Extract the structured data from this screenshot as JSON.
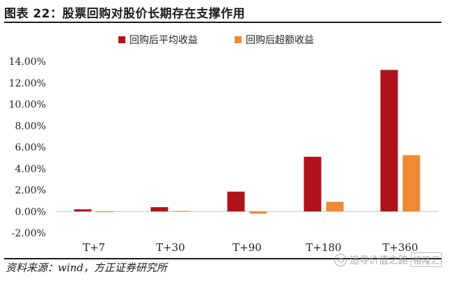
{
  "header": {
    "title": "图表 22：股票回购对股价长期存在支撑作用"
  },
  "footer": {
    "source": "资料来源：wind，方正证券研究所",
    "watermark_text": "追寻价值之路",
    "watermark_badge": "格隆汇"
  },
  "icons": {
    "watermark": "wechat-icon"
  },
  "chart_data": {
    "type": "bar",
    "categories": [
      "T+7",
      "T+30",
      "T+90",
      "T+180",
      "T+360"
    ],
    "series": [
      {
        "name": "回购后平均收益",
        "color": "#b0121b",
        "values": [
          0.2,
          0.4,
          1.85,
          5.1,
          13.2
        ]
      },
      {
        "name": "回购后超额收益",
        "color": "#ed8a33",
        "values": [
          -0.05,
          0.05,
          -0.2,
          0.9,
          5.25
        ]
      }
    ],
    "ylim": [
      -2,
      14
    ],
    "yticks": [
      -2,
      0,
      2,
      4,
      6,
      8,
      10,
      12,
      14
    ],
    "ytick_labels": [
      "-2.00%",
      "0.00%",
      "2.00%",
      "4.00%",
      "6.00%",
      "8.00%",
      "10.00%",
      "12.00%",
      "14.00%"
    ],
    "legend_position": "top-center",
    "grid": false
  }
}
